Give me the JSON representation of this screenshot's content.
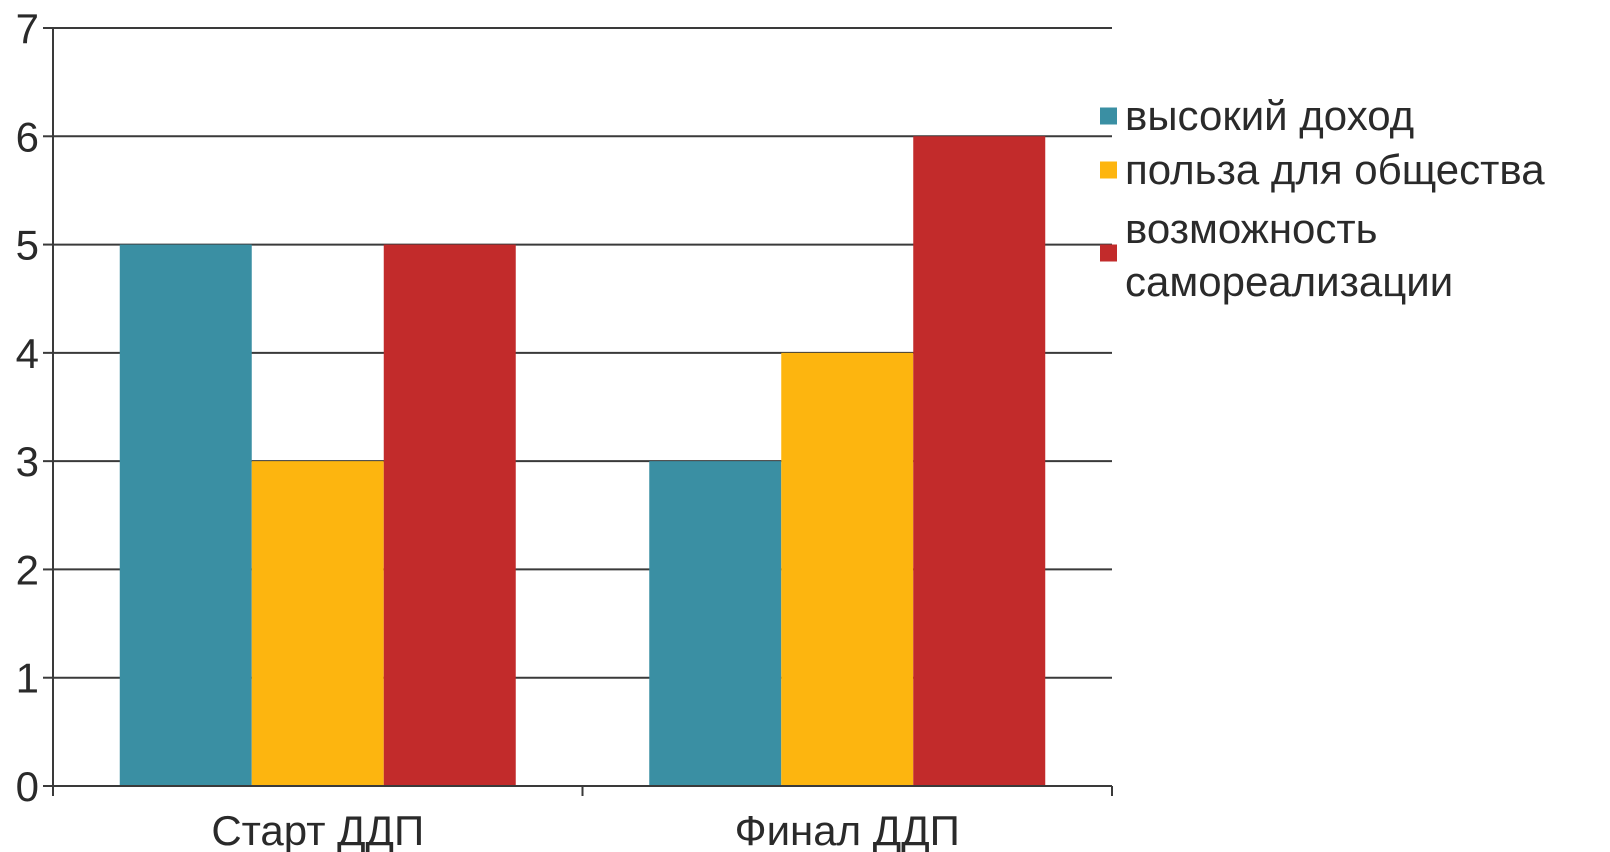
{
  "chart_data": {
    "type": "bar",
    "title": "",
    "xlabel": "",
    "ylabel": "",
    "categories": [
      "Старт ДДП",
      "Финал ДДП"
    ],
    "series": [
      {
        "name": "высокий доход",
        "values": [
          5,
          3
        ],
        "color": "#3a8fa3"
      },
      {
        "name": "польза для общества",
        "values": [
          3,
          4
        ],
        "color": "#fdb50f"
      },
      {
        "name": "возможность самореализации",
        "name_lines": [
          "возможность",
          "самореализации"
        ],
        "values": [
          5,
          6
        ],
        "color": "#c22b2b"
      }
    ],
    "ylim": [
      0,
      7
    ],
    "yticks": [
      "0",
      "1",
      "2",
      "3",
      "4",
      "5",
      "6",
      "7"
    ],
    "grid": true,
    "legend_position": "right"
  }
}
